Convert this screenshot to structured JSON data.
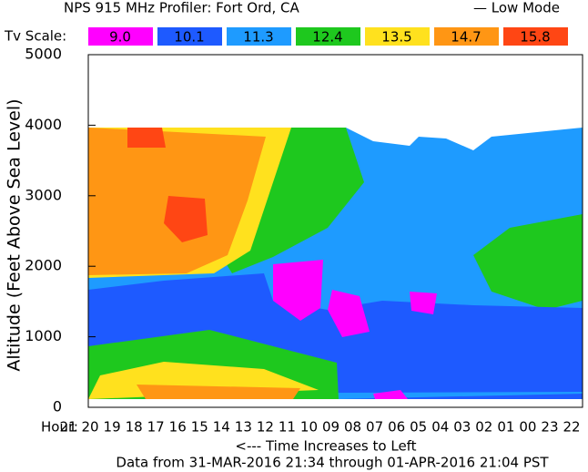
{
  "chart_data": {
    "type": "contour",
    "title": "NPS 915 MHz Profiler:  Fort Ord, CA",
    "mode_label": "— Low Mode",
    "scale_label": "Tv Scale:",
    "scale": [
      {
        "value": 9,
        "label": "9.0",
        "color": "#ff00ff"
      },
      {
        "value": 10.1,
        "label": "10.1",
        "color": "#1e5aff"
      },
      {
        "value": 11.3,
        "label": "11.3",
        "color": "#1e9bff"
      },
      {
        "value": 12.4,
        "label": "12.4",
        "color": "#1ec81e"
      },
      {
        "value": 13.5,
        "label": "13.5",
        "color": "#ffe11e"
      },
      {
        "value": 14.7,
        "label": "14.7",
        "color": "#ff9614"
      },
      {
        "value": 15.8,
        "label": "15.8",
        "color": "#ff4614"
      }
    ],
    "y_label": "Altitude (Feet Above Sea Level)",
    "ylim": [
      0,
      5000
    ],
    "yticks": [
      0,
      1000,
      2000,
      3000,
      4000,
      5000
    ],
    "x_prefix": "Hour:",
    "categories": [
      "21",
      "20",
      "19",
      "18",
      "17",
      "16",
      "15",
      "14",
      "13",
      "12",
      "11",
      "10",
      "09",
      "08",
      "07",
      "06",
      "05",
      "04",
      "03",
      "02",
      "01",
      "00",
      "23",
      "22"
    ],
    "x_label": "<--- Time Increases to Left",
    "footer": "Data from  31-MAR-2016 21:34 through 01-APR-2016 21:04 PST"
  }
}
